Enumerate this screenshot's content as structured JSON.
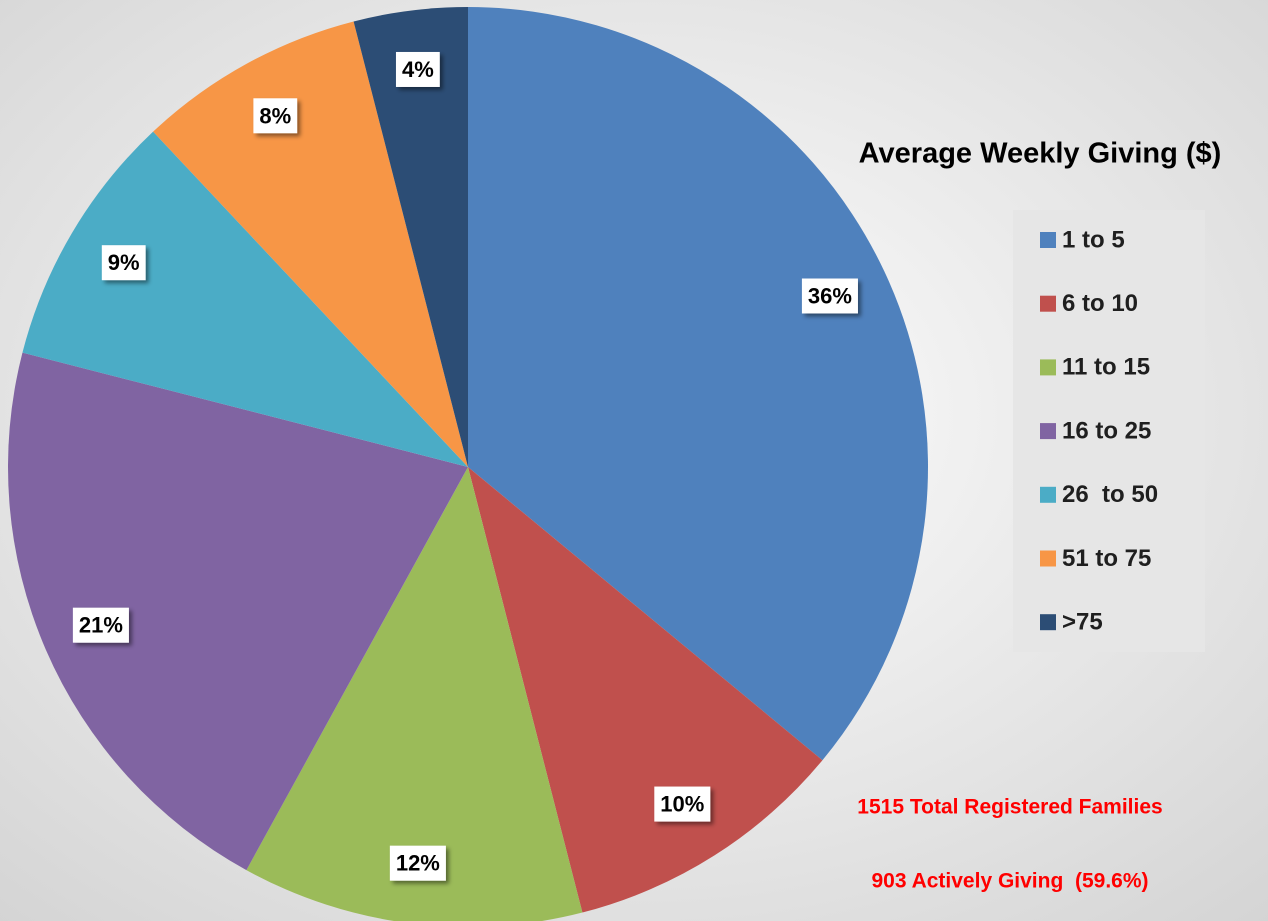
{
  "chart_data": {
    "type": "pie",
    "title": "Average Weekly Giving ($)",
    "categories": [
      "1 to 5",
      "6 to 10",
      "11 to 15",
      "16 to 25",
      "26  to 50",
      "51 to 75",
      ">75"
    ],
    "values": [
      36,
      10,
      12,
      21,
      9,
      8,
      4
    ],
    "value_labels": [
      "36%",
      "10%",
      "12%",
      "21%",
      "9%",
      "8%",
      "4%"
    ],
    "colors": [
      "#4f81bd",
      "#c0504d",
      "#9bbb59",
      "#8064a2",
      "#4bacc6",
      "#f79646",
      "#2c4d75"
    ],
    "legend": "right",
    "annotations": [
      "1515 Total Registered Families",
      "903 Actively Giving  (59.6%)"
    ]
  }
}
